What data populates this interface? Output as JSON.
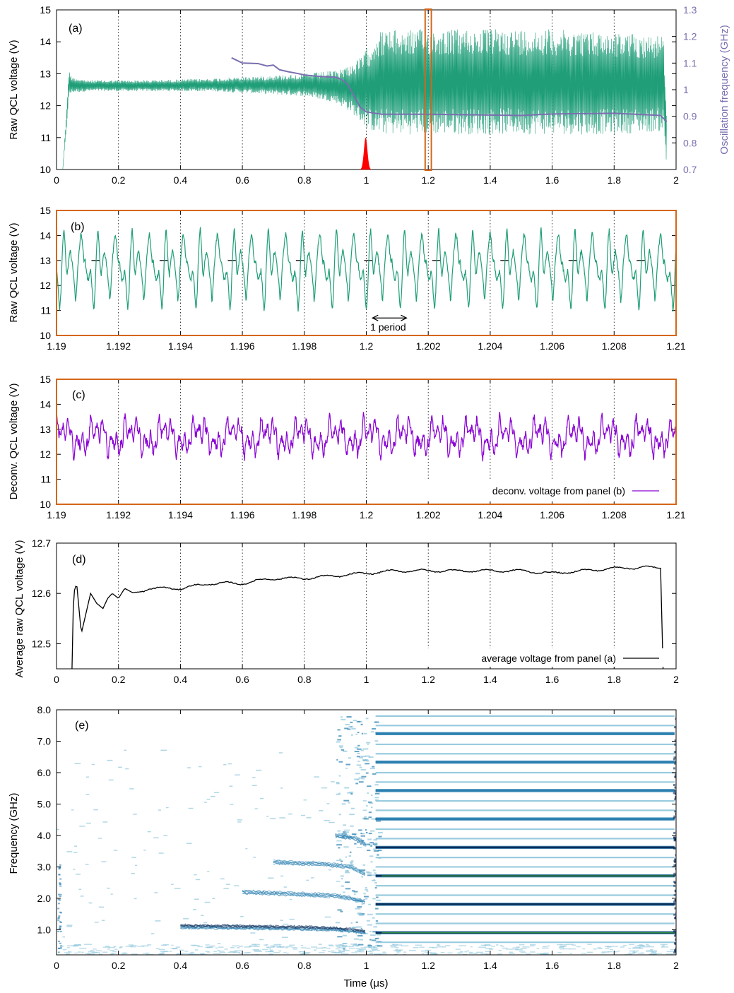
{
  "colors": {
    "raw_trace": "#1f9e78",
    "deconv_trace": "#8a00d4",
    "average_trace": "#000000",
    "frequency_trace": "#7b6fb0",
    "pulse": "#ff0000",
    "zoom_frame": "#d4661a",
    "spectrogram_dark": "#0a2f5c",
    "spectrogram_mid": "#2a7fb0",
    "spectrogram_light": "#8fc6dc",
    "spectrogram_peak": "#2e8b3e"
  },
  "chart_data": [
    {
      "id": "a",
      "type": "line",
      "panel_label": "(a)",
      "ylabel": "Raw QCL voltage (V)",
      "y2label": "Oscillation frequency (GHz)",
      "xlim": [
        0,
        2
      ],
      "ylim": [
        10,
        15
      ],
      "y2lim": [
        0.7,
        1.3
      ],
      "xticks": [
        "0",
        "0.2",
        "0.4",
        "0.6",
        "0.8",
        "1",
        "1.2",
        "1.4",
        "1.6",
        "1.8",
        "2"
      ],
      "yticks": [
        "10",
        "11",
        "12",
        "13",
        "14",
        "15"
      ],
      "y2ticks": [
        "0.7",
        "0.8",
        "0.9",
        "1",
        "1.1",
        "1.2",
        "1.3"
      ],
      "grid": "vertical dotted",
      "highlight_window": [
        1.19,
        1.21
      ],
      "raw_voltage_envelope": {
        "x": [
          0.02,
          0.03,
          0.04,
          0.05,
          0.1,
          0.3,
          0.5,
          0.7,
          0.8,
          0.9,
          0.95,
          0.98,
          1.0,
          1.02,
          1.03,
          1.05,
          1.2,
          1.4,
          1.6,
          1.8,
          1.96,
          1.97
        ],
        "upper": [
          10.0,
          11.5,
          13.1,
          12.9,
          12.8,
          12.8,
          12.85,
          12.95,
          13.0,
          13.1,
          13.3,
          13.5,
          13.8,
          14.0,
          14.3,
          14.35,
          14.4,
          14.4,
          14.4,
          14.3,
          14.2,
          11.5
        ],
        "lower": [
          10.0,
          11.0,
          12.3,
          12.4,
          12.45,
          12.45,
          12.45,
          12.35,
          12.3,
          12.1,
          11.8,
          11.5,
          11.3,
          11.2,
          11.1,
          11.1,
          11.1,
          11.1,
          11.1,
          11.1,
          11.2,
          10.0
        ]
      },
      "oscillation_frequency": {
        "x": [
          0.565,
          0.6,
          0.65,
          0.68,
          0.7,
          0.72,
          0.75,
          0.78,
          0.8,
          0.85,
          0.9,
          0.92,
          0.94,
          0.96,
          0.98,
          1.0,
          1.05,
          1.2,
          1.5,
          1.6,
          1.8,
          1.95,
          1.97
        ],
        "values": [
          1.12,
          1.1,
          1.1,
          1.09,
          1.095,
          1.075,
          1.07,
          1.06,
          1.055,
          1.05,
          1.05,
          1.04,
          1.02,
          0.98,
          0.935,
          0.915,
          0.905,
          0.905,
          0.905,
          0.91,
          0.91,
          0.905,
          0.88
        ]
      },
      "pulse": {
        "center": 0.998,
        "width": 0.008,
        "peak": 11.0
      }
    },
    {
      "id": "b",
      "type": "line",
      "panel_label": "(b)",
      "ylabel": "Raw QCL voltage (V)",
      "xlim": [
        1.19,
        1.21
      ],
      "ylim": [
        10,
        15
      ],
      "xticks": [
        "1.19",
        "1.192",
        "1.194",
        "1.196",
        "1.198",
        "1.2",
        "1.202",
        "1.204",
        "1.206",
        "1.208",
        "1.21"
      ],
      "yticks": [
        "10",
        "11",
        "12",
        "13",
        "14",
        "15"
      ],
      "grid": "vertical dotted",
      "period_ns": 1.1,
      "period_annotation": {
        "label": "1 period",
        "x_start": 1.2002,
        "x_end": 1.2013,
        "y": 10.7
      },
      "period_template_v": [
        12.6,
        12.2,
        11.5,
        11.0,
        11.6,
        12.8,
        13.8,
        14.3,
        13.6,
        12.7,
        12.4,
        12.8,
        13.2,
        13.4,
        13.1,
        12.8,
        12.4,
        12.0,
        11.3,
        11.9,
        12.7,
        13.3,
        13.7,
        14.1,
        13.9,
        13.3,
        12.9,
        13.0,
        12.6,
        12.3,
        12.2,
        12.4
      ],
      "reference_level_v": 13.0
    },
    {
      "id": "c",
      "type": "line",
      "panel_label": "(c)",
      "ylabel": "Deconv. QCL voltage (V)",
      "xlim": [
        1.19,
        1.21
      ],
      "ylim": [
        10,
        15
      ],
      "xticks": [
        "1.19",
        "1.192",
        "1.194",
        "1.196",
        "1.198",
        "1.2",
        "1.202",
        "1.204",
        "1.206",
        "1.208",
        "1.21"
      ],
      "yticks": [
        "10",
        "11",
        "12",
        "13",
        "14",
        "15"
      ],
      "grid": "vertical dotted",
      "legend": "deconv. voltage from panel (b)",
      "legend_position": "bottom-right",
      "mean_v": 12.7,
      "range_v": [
        11.6,
        13.9
      ]
    },
    {
      "id": "d",
      "type": "line",
      "panel_label": "(d)",
      "ylabel": "Average raw QCL voltage (V)",
      "xlim": [
        0,
        2
      ],
      "ylim": [
        12.45,
        12.7
      ],
      "xticks": [
        "0",
        "0.2",
        "0.4",
        "0.6",
        "0.8",
        "1",
        "1.2",
        "1.4",
        "1.6",
        "1.8",
        "2"
      ],
      "yticks": [
        "12.5",
        "12.6",
        "12.7"
      ],
      "grid": "vertical dotted",
      "legend": "average voltage from panel (a)",
      "legend_position": "bottom-right",
      "x": [
        0.05,
        0.055,
        0.065,
        0.08,
        0.095,
        0.11,
        0.13,
        0.15,
        0.165,
        0.18,
        0.2,
        0.22,
        0.25,
        0.3,
        0.4,
        0.5,
        0.6,
        0.7,
        0.8,
        0.9,
        1.0,
        1.1,
        1.2,
        1.3,
        1.4,
        1.5,
        1.6,
        1.7,
        1.8,
        1.9,
        1.95,
        1.958
      ],
      "values": [
        12.45,
        12.6,
        12.62,
        12.52,
        12.56,
        12.6,
        12.58,
        12.57,
        12.59,
        12.6,
        12.59,
        12.61,
        12.6,
        12.61,
        12.61,
        12.62,
        12.62,
        12.63,
        12.63,
        12.635,
        12.64,
        12.645,
        12.645,
        12.645,
        12.645,
        12.645,
        12.64,
        12.645,
        12.65,
        12.652,
        12.65,
        12.45
      ]
    },
    {
      "id": "e",
      "type": "heatmap",
      "panel_label": "(e)",
      "ylabel": "Frequency (GHz)",
      "xlabel": "Time (μs)",
      "xlim": [
        0,
        2
      ],
      "ylim": [
        0.2,
        8.0
      ],
      "xticks": [
        "0",
        "0.2",
        "0.4",
        "0.6",
        "0.8",
        "1",
        "1.2",
        "1.4",
        "1.6",
        "1.8",
        "2"
      ],
      "yticks": [
        "1.0",
        "2.0",
        "3.0",
        "4.0",
        "5.0",
        "6.0",
        "7.0",
        "8.0"
      ],
      "comb_start_time": 1.03,
      "comb_spacing_ghz": 0.905,
      "comb_lines_ghz": [
        0.905,
        1.81,
        2.715,
        3.62,
        4.525,
        5.43,
        6.335,
        7.24
      ],
      "comb_line_strength": [
        1.0,
        0.85,
        1.0,
        0.9,
        0.7,
        0.6,
        0.5,
        0.55
      ],
      "intermediate_lines_ghz": [
        0.6,
        1.2,
        1.5,
        2.1,
        2.4,
        3.0,
        3.3,
        3.9,
        4.2,
        4.8,
        5.1,
        5.7,
        6.0,
        6.6,
        6.9,
        7.5,
        7.8
      ],
      "pre_comb_features": [
        {
          "t": [
            0.4,
            0.6,
            0.8,
            0.9,
            0.95,
            1.0
          ],
          "f": [
            1.1,
            1.08,
            1.05,
            1.02,
            0.98,
            0.92
          ]
        },
        {
          "t": [
            0.6,
            0.8,
            0.9,
            0.95,
            1.0
          ],
          "f": [
            2.2,
            2.12,
            2.08,
            2.0,
            1.88
          ]
        },
        {
          "t": [
            0.7,
            0.85,
            0.95,
            1.0
          ],
          "f": [
            3.15,
            3.1,
            3.0,
            2.75
          ]
        },
        {
          "t": [
            0.9,
            0.97,
            1.0
          ],
          "f": [
            4.0,
            3.9,
            3.7
          ]
        }
      ]
    }
  ]
}
